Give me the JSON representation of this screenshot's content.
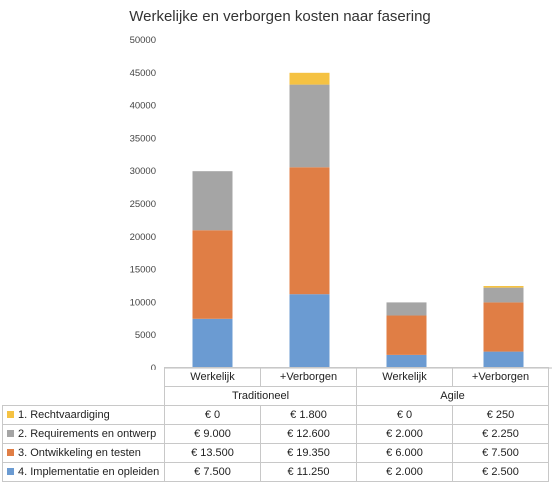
{
  "chart_data": {
    "type": "bar",
    "stacked": true,
    "title": "Werkelijke en verborgen kosten naar fasering",
    "categories": [
      "Werkelijk",
      "+Verborgen",
      "Werkelijk",
      "+Verborgen"
    ],
    "groups": [
      {
        "label": "Traditioneel",
        "span": 2
      },
      {
        "label": "Agile",
        "span": 2
      }
    ],
    "ylim": [
      0,
      50000
    ],
    "yticks": [
      "0",
      "5000",
      "10000",
      "15000",
      "20000",
      "25000",
      "30000",
      "35000",
      "40000",
      "45000",
      "50000"
    ],
    "grid": false,
    "series": [
      {
        "name": "4. Implementatie en opleiden",
        "color": "#6b9bd2",
        "values": [
          7500,
          11250,
          2000,
          2500
        ],
        "labels": [
          "€ 7.500",
          "€ 11.250",
          "€ 2.000",
          "€ 2.500"
        ]
      },
      {
        "name": "3. Ontwikkeling en testen",
        "color": "#e07e45",
        "values": [
          13500,
          19350,
          6000,
          7500
        ],
        "labels": [
          "€ 13.500",
          "€ 19.350",
          "€ 6.000",
          "€ 7.500"
        ]
      },
      {
        "name": "2. Requirements en ontwerp",
        "color": "#a5a5a5",
        "values": [
          9000,
          12600,
          2000,
          2250
        ],
        "labels": [
          "€ 9.000",
          "€ 12.600",
          "€ 2.000",
          "€ 2.250"
        ]
      },
      {
        "name": "1. Rechtvaardiging",
        "color": "#f5c242",
        "values": [
          0,
          1800,
          0,
          250
        ],
        "labels": [
          "€ 0",
          "€ 1.800",
          "€ 0",
          "€ 250"
        ]
      }
    ],
    "table_row_order": [
      3,
      2,
      1,
      0
    ]
  }
}
